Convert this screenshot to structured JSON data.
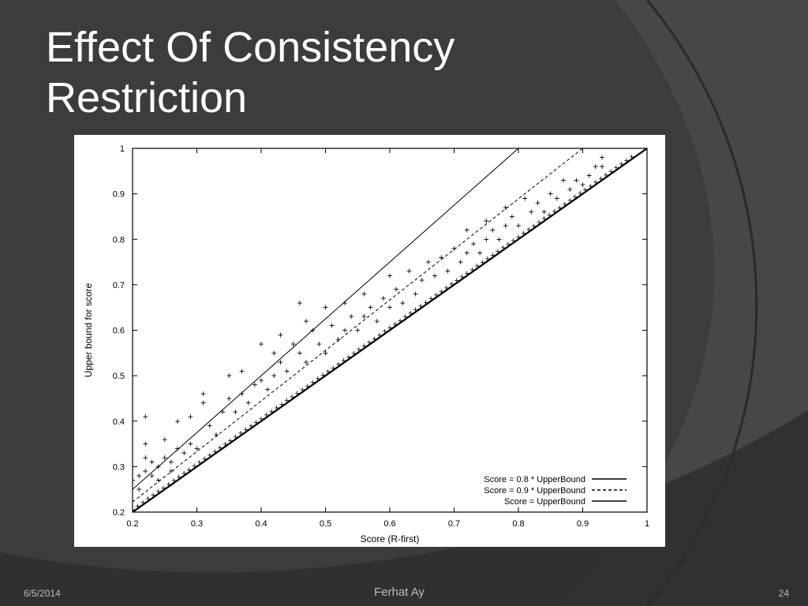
{
  "slide": {
    "title_line1": "Effect Of Consistency",
    "title_line2": "Restriction",
    "footer_date": "6/5/2014",
    "footer_author": "Ferhat Ay",
    "footer_page": "24",
    "colors": {
      "background": "#3c3c3c",
      "title": "#ffffff",
      "footer": "#bdbdbd"
    }
  },
  "chart_data": {
    "type": "scatter",
    "title": "",
    "xlabel": "Score (R-first)",
    "ylabel": "Upper bound for score",
    "xlim": [
      0.2,
      1
    ],
    "ylim": [
      0.2,
      1
    ],
    "xticks": [
      "0.2",
      "0.3",
      "0.4",
      "0.5",
      "0.6",
      "0.7",
      "0.8",
      "0.9",
      "1"
    ],
    "yticks": [
      "0.2",
      "0.3",
      "0.4",
      "0.5",
      "0.6",
      "0.7",
      "0.8",
      "0.9",
      "1"
    ],
    "legend_position": "bottom-right",
    "lines": [
      {
        "label": "Score = 0.8 * UpperBound",
        "slope": 1.25,
        "style": "solid"
      },
      {
        "label": "Score = 0.9 * UpperBound",
        "slope": 1.1111,
        "style": "dashed"
      },
      {
        "label": "Score = UpperBound",
        "slope": 1.0,
        "style": "solid"
      }
    ],
    "points": [
      [
        0.2,
        0.27
      ],
      [
        0.21,
        0.28
      ],
      [
        0.21,
        0.25
      ],
      [
        0.22,
        0.41
      ],
      [
        0.22,
        0.35
      ],
      [
        0.22,
        0.32
      ],
      [
        0.22,
        0.29
      ],
      [
        0.23,
        0.31
      ],
      [
        0.23,
        0.28
      ],
      [
        0.24,
        0.3
      ],
      [
        0.24,
        0.27
      ],
      [
        0.25,
        0.36
      ],
      [
        0.25,
        0.32
      ],
      [
        0.26,
        0.31
      ],
      [
        0.26,
        0.29
      ],
      [
        0.27,
        0.4
      ],
      [
        0.27,
        0.34
      ],
      [
        0.28,
        0.33
      ],
      [
        0.29,
        0.41
      ],
      [
        0.29,
        0.35
      ],
      [
        0.3,
        0.34
      ],
      [
        0.31,
        0.46
      ],
      [
        0.31,
        0.44
      ],
      [
        0.32,
        0.39
      ],
      [
        0.33,
        0.37
      ],
      [
        0.34,
        0.42
      ],
      [
        0.35,
        0.5
      ],
      [
        0.35,
        0.45
      ],
      [
        0.36,
        0.42
      ],
      [
        0.37,
        0.51
      ],
      [
        0.37,
        0.46
      ],
      [
        0.38,
        0.44
      ],
      [
        0.39,
        0.48
      ],
      [
        0.4,
        0.57
      ],
      [
        0.4,
        0.49
      ],
      [
        0.41,
        0.47
      ],
      [
        0.42,
        0.55
      ],
      [
        0.42,
        0.5
      ],
      [
        0.43,
        0.59
      ],
      [
        0.43,
        0.53
      ],
      [
        0.44,
        0.51
      ],
      [
        0.45,
        0.57
      ],
      [
        0.46,
        0.66
      ],
      [
        0.46,
        0.55
      ],
      [
        0.47,
        0.62
      ],
      [
        0.47,
        0.53
      ],
      [
        0.48,
        0.6
      ],
      [
        0.49,
        0.57
      ],
      [
        0.5,
        0.65
      ],
      [
        0.5,
        0.55
      ],
      [
        0.51,
        0.61
      ],
      [
        0.52,
        0.58
      ],
      [
        0.53,
        0.66
      ],
      [
        0.53,
        0.6
      ],
      [
        0.54,
        0.63
      ],
      [
        0.55,
        0.6
      ],
      [
        0.56,
        0.68
      ],
      [
        0.56,
        0.63
      ],
      [
        0.57,
        0.65
      ],
      [
        0.58,
        0.62
      ],
      [
        0.59,
        0.67
      ],
      [
        0.6,
        0.72
      ],
      [
        0.6,
        0.65
      ],
      [
        0.61,
        0.69
      ],
      [
        0.62,
        0.66
      ],
      [
        0.63,
        0.73
      ],
      [
        0.64,
        0.68
      ],
      [
        0.65,
        0.71
      ],
      [
        0.66,
        0.75
      ],
      [
        0.67,
        0.72
      ],
      [
        0.68,
        0.76
      ],
      [
        0.69,
        0.73
      ],
      [
        0.7,
        0.78
      ],
      [
        0.71,
        0.75
      ],
      [
        0.72,
        0.82
      ],
      [
        0.72,
        0.77
      ],
      [
        0.73,
        0.79
      ],
      [
        0.74,
        0.77
      ],
      [
        0.75,
        0.84
      ],
      [
        0.75,
        0.8
      ],
      [
        0.76,
        0.82
      ],
      [
        0.77,
        0.8
      ],
      [
        0.78,
        0.87
      ],
      [
        0.78,
        0.83
      ],
      [
        0.79,
        0.85
      ],
      [
        0.8,
        0.83
      ],
      [
        0.81,
        0.89
      ],
      [
        0.82,
        0.86
      ],
      [
        0.83,
        0.88
      ],
      [
        0.84,
        0.86
      ],
      [
        0.85,
        0.9
      ],
      [
        0.86,
        0.89
      ],
      [
        0.87,
        0.93
      ],
      [
        0.88,
        0.91
      ],
      [
        0.89,
        0.93
      ],
      [
        0.9,
        0.92
      ],
      [
        0.91,
        0.94
      ],
      [
        0.92,
        0.96
      ],
      [
        0.93,
        0.98
      ],
      [
        0.93,
        0.96
      ]
    ]
  }
}
